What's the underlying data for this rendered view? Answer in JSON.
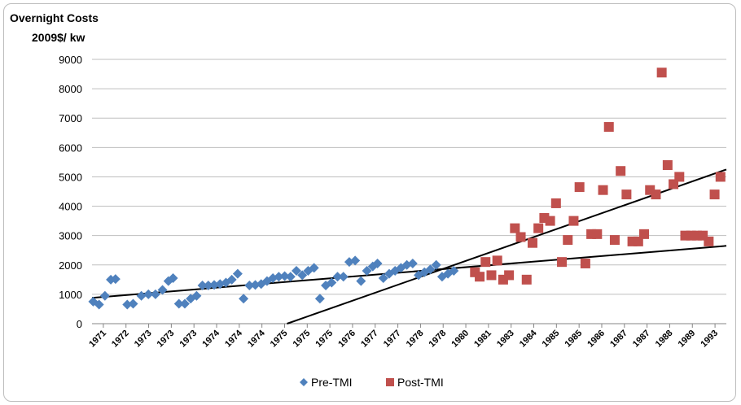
{
  "chart_data": {
    "type": "scatter",
    "title": "Overnight Costs",
    "subtitle": "2009$/ kw",
    "xlabel": "",
    "ylabel": "",
    "ylim": [
      0,
      9000
    ],
    "yticks": [
      0,
      1000,
      2000,
      3000,
      4000,
      5000,
      6000,
      7000,
      8000,
      9000
    ],
    "grid": true,
    "legend_position": "bottom",
    "categories": [
      "1971",
      "1972",
      "1973",
      "1973",
      "1973",
      "1974",
      "1974",
      "1974",
      "1975",
      "1975",
      "1975",
      "1976",
      "1977",
      "1977",
      "1978",
      "1978",
      "1980",
      "1981",
      "1983",
      "1984",
      "1985",
      "1985",
      "1986",
      "1987",
      "1987",
      "1988",
      "1989",
      "1993"
    ],
    "series": [
      {
        "name": "Pre-TMI",
        "color": "#4f81bd",
        "marker": "diamond",
        "x": [
          0.05,
          0.3,
          0.55,
          0.8,
          1.0,
          1.5,
          1.75,
          2.1,
          2.4,
          2.7,
          3.0,
          3.25,
          3.45,
          3.7,
          3.95,
          4.2,
          4.45,
          4.7,
          4.95,
          5.2,
          5.45,
          5.7,
          5.95,
          6.2,
          6.45,
          6.7,
          6.95,
          7.2,
          7.45,
          7.7,
          7.95,
          8.2,
          8.45,
          8.7,
          8.95,
          9.2,
          9.45,
          9.7,
          9.95,
          10.2,
          10.45,
          10.7,
          10.95,
          11.2,
          11.45,
          11.7,
          11.95,
          12.15,
          12.4,
          12.65,
          12.9,
          13.15,
          13.4,
          13.65,
          13.9,
          14.15,
          14.4,
          14.65,
          14.9,
          15.15,
          15.4
        ],
        "y": [
          750,
          650,
          950,
          1500,
          1520,
          650,
          680,
          950,
          1000,
          1000,
          1150,
          1450,
          1550,
          680,
          680,
          850,
          950,
          1300,
          1300,
          1320,
          1350,
          1400,
          1500,
          1700,
          850,
          1300,
          1320,
          1350,
          1450,
          1550,
          1600,
          1620,
          1600,
          1800,
          1650,
          1800,
          1900,
          850,
          1300,
          1400,
          1600,
          1600,
          2100,
          2150,
          1450,
          1800,
          1950,
          2050,
          1550,
          1700,
          1800,
          1900,
          2000,
          2050,
          1650,
          1750,
          1850,
          2000,
          1600,
          1700,
          1800
        ]
      },
      {
        "name": "Post-TMI",
        "color": "#c0504d",
        "marker": "square",
        "x": [
          16.3,
          16.5,
          16.75,
          17.0,
          17.25,
          17.5,
          17.75,
          18.0,
          18.25,
          18.5,
          18.75,
          19.0,
          19.25,
          19.5,
          19.75,
          20.0,
          20.25,
          20.5,
          20.75,
          21.0,
          21.25,
          21.5,
          21.75,
          22.0,
          22.25,
          22.5,
          22.75,
          23.0,
          23.25,
          23.5,
          23.75,
          24.0,
          24.25,
          24.5,
          24.75,
          25.0,
          25.25,
          25.5,
          25.75,
          26.0,
          26.25,
          26.5,
          26.75
        ],
        "y": [
          1750,
          1600,
          2100,
          1650,
          2150,
          1500,
          1650,
          3250,
          2950,
          1500,
          2750,
          3250,
          3600,
          3500,
          4100,
          2100,
          2850,
          3500,
          4650,
          2050,
          3050,
          3050,
          4550,
          6700,
          2850,
          5200,
          4400,
          2800,
          2800,
          3050,
          4550,
          4400,
          8550,
          5400,
          4750,
          5000,
          3000,
          3000,
          3000,
          3000,
          2800,
          4400,
          5000
        ]
      }
    ],
    "trendlines": [
      {
        "x": [
          0,
          27
        ],
        "y": [
          880,
          2650
        ]
      },
      {
        "x": [
          8.3,
          27
        ],
        "y": [
          0,
          5250
        ]
      }
    ]
  }
}
